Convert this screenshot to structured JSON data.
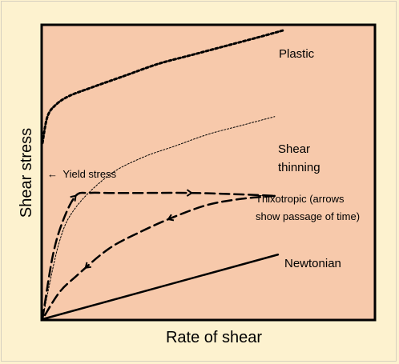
{
  "chart_data": {
    "type": "line",
    "title": "",
    "xlabel": "Rate of shear",
    "ylabel": "Shear stress",
    "grid": false,
    "legend": "none (curves labelled directly)",
    "colors": {
      "page_background": "#fdf2cf",
      "plot_background": "#f7c9ab",
      "ink": "#000000"
    },
    "xlim": [
      0,
      10
    ],
    "ylim": [
      0,
      10
    ],
    "series": [
      {
        "key": "plastic",
        "name": "Plastic",
        "style": "heavy dotted",
        "x": [
          0.0,
          0.15,
          0.4,
          0.8,
          1.5,
          2.5,
          3.5,
          4.5,
          5.5,
          6.5,
          7.3
        ],
        "y": [
          6.0,
          6.9,
          7.3,
          7.6,
          7.9,
          8.3,
          8.7,
          9.0,
          9.3,
          9.6,
          9.85
        ]
      },
      {
        "key": "shear_thinning",
        "name": "Shear thinning",
        "name_lines": [
          "Shear",
          "thinning"
        ],
        "style": "thin dotted",
        "x": [
          0.0,
          0.5,
          1.0,
          2.0,
          3.0,
          4.0,
          5.0,
          6.0,
          7.0
        ],
        "y": [
          0.0,
          2.6,
          3.8,
          4.9,
          5.5,
          5.9,
          6.3,
          6.6,
          6.9
        ]
      },
      {
        "key": "thixotropic_up",
        "name": "Thixotropic (arrows show passage of time)",
        "name_lines": [
          "Thixotropic  (arrows",
          "show passage of time)"
        ],
        "style": "long dash",
        "x": [
          0.0,
          0.3,
          0.6,
          1.0,
          1.4,
          2.0,
          3.0,
          4.5,
          6.0,
          7.0
        ],
        "y": [
          0.0,
          2.1,
          3.3,
          4.2,
          4.3,
          4.3,
          4.3,
          4.3,
          4.25,
          4.2
        ]
      },
      {
        "key": "thixotropic_down",
        "name": "",
        "style": "long dash",
        "x": [
          7.0,
          6.0,
          5.0,
          4.0,
          3.0,
          2.0,
          1.0,
          0.5,
          0.0
        ],
        "y": [
          4.2,
          4.1,
          3.9,
          3.5,
          3.0,
          2.4,
          1.45,
          0.9,
          0.0
        ]
      },
      {
        "key": "newtonian",
        "name": "Newtonian",
        "style": "solid",
        "x": [
          0.0,
          7.1
        ],
        "y": [
          0.0,
          2.2
        ]
      }
    ],
    "annotations": [
      {
        "key": "yield_stress",
        "text": "Yield stress",
        "x": 0.0,
        "y": 5.5
      }
    ],
    "arrows": [
      {
        "series": "thixotropic_up",
        "at_x": 1.0,
        "direction": "forward"
      },
      {
        "series": "thixotropic_up",
        "at_x": 4.5,
        "direction": "forward"
      },
      {
        "series": "thixotropic_down",
        "at_x": 3.8,
        "direction": "forward"
      },
      {
        "series": "thixotropic_down",
        "at_x": 1.3,
        "direction": "forward"
      }
    ]
  }
}
